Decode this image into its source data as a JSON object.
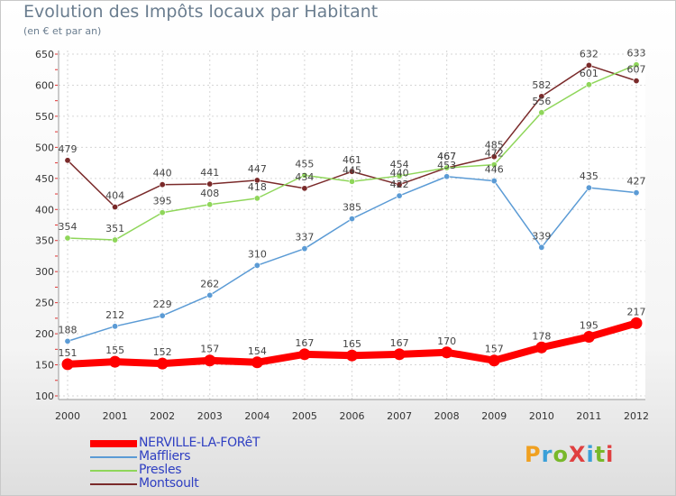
{
  "header": {
    "title": "Evolution des Impôts locaux par Habitant",
    "subtitle": "(en € et par an)"
  },
  "logo": {
    "text": "ProXiti",
    "colors": [
      "#f0a020",
      "#3aa0d8",
      "#78b82a",
      "#e04040",
      "#3aa0d8",
      "#78b82a",
      "#e04040"
    ]
  },
  "chart_data": {
    "type": "line",
    "x": [
      2000,
      2001,
      2002,
      2003,
      2004,
      2005,
      2006,
      2007,
      2008,
      2009,
      2010,
      2011,
      2012
    ],
    "ylim": [
      100,
      650
    ],
    "yticks": [
      100,
      150,
      200,
      250,
      300,
      350,
      400,
      450,
      500,
      550,
      600,
      650
    ],
    "grid": true,
    "series": [
      {
        "name": "NERVILLE-LA-FORêT",
        "color": "#ff0000",
        "width": 8,
        "values": [
          151,
          155,
          152,
          157,
          154,
          167,
          165,
          167,
          170,
          157,
          178,
          195,
          217
        ]
      },
      {
        "name": "Maffliers",
        "color": "#5b9bd5",
        "width": 1.5,
        "values": [
          188,
          212,
          229,
          262,
          310,
          337,
          385,
          422,
          453,
          446,
          339,
          435,
          427
        ]
      },
      {
        "name": "Presles",
        "color": "#8fd65a",
        "width": 1.5,
        "values": [
          354,
          351,
          395,
          408,
          418,
          455,
          445,
          454,
          467,
          472,
          556,
          601,
          633
        ]
      },
      {
        "name": "Montsoult",
        "color": "#7a2a2a",
        "width": 1.5,
        "values": [
          479,
          404,
          440,
          441,
          447,
          434,
          461,
          440,
          467,
          485,
          582,
          632,
          607
        ]
      }
    ]
  }
}
